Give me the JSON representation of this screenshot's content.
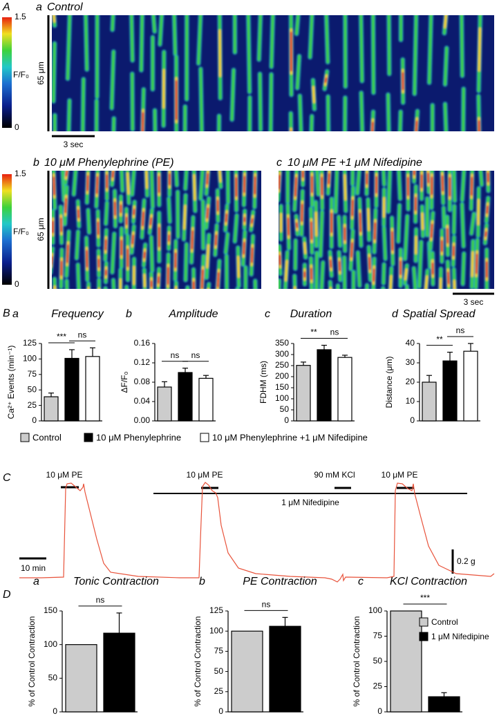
{
  "panel_A": {
    "label": "A",
    "kymographs": [
      {
        "label": "a",
        "title": "Control"
      },
      {
        "label": "b",
        "title": "10 μM Phenylephrine (PE)"
      },
      {
        "label": "c",
        "title": "10 μM PE +1 μM Nifedipine"
      }
    ],
    "colorbar": {
      "name": "F/F₀",
      "range": [
        0,
        1.5
      ]
    },
    "length_scale": "65 μm",
    "time_scale": "3 sec"
  },
  "panel_B": {
    "label": "B"
  },
  "panel_C": {
    "label": "C",
    "drug_labels": [
      "10 μM PE",
      "10 μM PE",
      "90 mM KCl",
      "10 μM PE"
    ],
    "nifedipine_label": "1 μM Nifedipine",
    "time_scale": "10 min",
    "force_scale": "0.2 g"
  },
  "panel_D": {
    "label": "D"
  },
  "chart_data": [
    {
      "type": "bar",
      "panel": "a",
      "title": "Frequency",
      "ylabel": "Ca²⁺ Events (min⁻¹)",
      "ylim": [
        0,
        125
      ],
      "yticks": [
        0,
        25,
        50,
        75,
        100,
        125
      ],
      "legend": "bottom",
      "series": [
        {
          "name": "Control",
          "color": "#cccccc",
          "values": [
            39
          ],
          "errors": [
            6
          ]
        },
        {
          "name": "10 μM Phenylephrine",
          "color": "#000000",
          "values": [
            101
          ],
          "errors": [
            14
          ]
        },
        {
          "name": "10 μM Phenylephrine +1 μM Nifedipine",
          "color": "#ffffff",
          "values": [
            104
          ],
          "errors": [
            14
          ]
        }
      ],
      "significance": [
        "***",
        "ns"
      ]
    },
    {
      "type": "bar",
      "panel": "b",
      "title": "Amplitude",
      "ylabel": "ΔF/F₀",
      "ylim": [
        0,
        0.16
      ],
      "yticks": [
        {
          "value": 0,
          "label": "0.00"
        },
        0.04,
        0.08,
        0.12,
        0.16
      ],
      "series": [
        {
          "color": "#cccccc",
          "values": [
            0.07
          ],
          "errors": [
            0.011
          ]
        },
        {
          "color": "#000000",
          "values": [
            0.1
          ],
          "errors": [
            0.009
          ]
        },
        {
          "color": "#ffffff",
          "values": [
            0.088
          ],
          "errors": [
            0.006
          ]
        }
      ],
      "significance": [
        "ns",
        "ns"
      ]
    },
    {
      "type": "bar",
      "panel": "c",
      "title": "Duration",
      "ylabel": "FDHM (ms)",
      "ylim": [
        0,
        350
      ],
      "yticks": [
        0,
        50,
        100,
        150,
        200,
        250,
        300,
        350
      ],
      "series": [
        {
          "color": "#cccccc",
          "values": [
            251
          ],
          "errors": [
            15
          ]
        },
        {
          "color": "#000000",
          "values": [
            322
          ],
          "errors": [
            20
          ]
        },
        {
          "color": "#ffffff",
          "values": [
            287
          ],
          "errors": [
            10
          ]
        }
      ],
      "significance": [
        "**",
        "ns"
      ]
    },
    {
      "type": "bar",
      "panel": "d",
      "title": "Spatial Spread",
      "ylabel": "Distance (μm)",
      "ylim": [
        0,
        40
      ],
      "yticks": [
        0,
        10,
        20,
        30,
        40
      ],
      "series": [
        {
          "color": "#cccccc",
          "values": [
            20
          ],
          "errors": [
            3.5
          ]
        },
        {
          "color": "#000000",
          "values": [
            31
          ],
          "errors": [
            4.5
          ]
        },
        {
          "color": "#ffffff",
          "values": [
            36
          ],
          "errors": [
            4
          ]
        }
      ],
      "significance": [
        "**",
        "ns"
      ]
    },
    {
      "type": "bar",
      "panel": "a",
      "title": "Tonic Contraction",
      "ylabel": "% of Control Contraction",
      "ylim": [
        0,
        150
      ],
      "yticks": [
        0,
        50,
        100,
        150
      ],
      "series": [
        {
          "color": "#cccccc",
          "values": [
            100
          ],
          "errors": [
            null
          ]
        },
        {
          "color": "#000000",
          "values": [
            117
          ],
          "errors": [
            30
          ]
        }
      ],
      "significance": [
        "ns"
      ]
    },
    {
      "type": "bar",
      "panel": "b",
      "title": "PE Contraction",
      "ylabel": "% of Control Contraction",
      "ylim": [
        0,
        125
      ],
      "yticks": [
        0,
        25,
        50,
        75,
        100,
        125
      ],
      "series": [
        {
          "color": "#cccccc",
          "values": [
            100
          ],
          "errors": [
            null
          ]
        },
        {
          "color": "#000000",
          "values": [
            106
          ],
          "errors": [
            11
          ]
        }
      ],
      "significance": [
        "ns"
      ]
    },
    {
      "type": "bar",
      "panel": "c",
      "title": "KCl Contraction",
      "ylabel": "% of Control Contraction",
      "ylim": [
        0,
        100
      ],
      "yticks": [
        0,
        25,
        50,
        75,
        100
      ],
      "legend": "upper right",
      "series": [
        {
          "name": "Control",
          "color": "#cccccc",
          "values": [
            100
          ],
          "errors": [
            null
          ]
        },
        {
          "name": "1 μM Nifedipine",
          "color": "#000000",
          "values": [
            15
          ],
          "errors": [
            4
          ]
        }
      ],
      "significance": [
        "***"
      ]
    }
  ]
}
